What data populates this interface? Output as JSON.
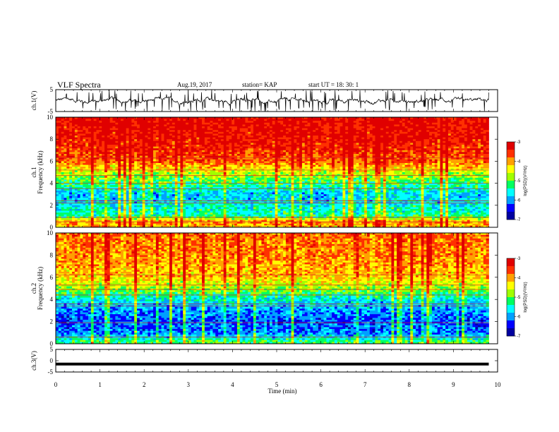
{
  "header": {
    "title": "VLF Spectra",
    "date": "Aug.19, 2017",
    "station": "station= KAP",
    "start": "start  UT  =   18: 30: 1"
  },
  "chart_data": [
    {
      "type": "line",
      "panel": "ch1-waveform",
      "ylabel": "ch.1(V)",
      "ylim": [
        -5,
        5
      ],
      "yticks": [
        5,
        -5
      ],
      "xlim": [
        0,
        10
      ],
      "note_values": "noisy waveform centred near 0 V, full-scale spikes",
      "envelope": {
        "center": 0.0,
        "amplitude": 5
      }
    },
    {
      "type": "heatmap",
      "panel": "ch1-spectrogram",
      "ylabel": "ch.1\nFrequency (kHz)",
      "ylim": [
        0,
        10
      ],
      "yticks": [
        0,
        2,
        4,
        6,
        8,
        10
      ],
      "xlim": [
        0,
        9.8
      ],
      "color_scale": {
        "label": "log(PSD)(V²/Hz)",
        "range": [
          -7,
          -3
        ],
        "ticks": [
          -3,
          -4,
          -5,
          -6,
          -7
        ]
      },
      "profile_khz": [
        {
          "f": 0.0,
          "v": -4.2
        },
        {
          "f": 0.5,
          "v": -3.9
        },
        {
          "f": 1.0,
          "v": -5.3
        },
        {
          "f": 2.0,
          "v": -5.6
        },
        {
          "f": 3.0,
          "v": -5.8
        },
        {
          "f": 4.0,
          "v": -5.2
        },
        {
          "f": 5.0,
          "v": -4.6
        },
        {
          "f": 6.0,
          "v": -3.7
        },
        {
          "f": 8.0,
          "v": -3.3
        },
        {
          "f": 10.0,
          "v": -3.2
        }
      ],
      "lines_khz": [
        0.5,
        0.9,
        2.2,
        2.4,
        3.5,
        4.0,
        4.7,
        5.2,
        6.3
      ]
    },
    {
      "type": "heatmap",
      "panel": "ch2-spectrogram",
      "ylabel": "ch.2\nFrequency (kHz)",
      "ylim": [
        0,
        10
      ],
      "yticks": [
        0,
        2,
        4,
        6,
        8,
        10
      ],
      "xlim": [
        0,
        9.8
      ],
      "color_scale": {
        "label": "log(PSD)(V²/Hz)",
        "range": [
          -7,
          -3
        ],
        "ticks": [
          -3,
          -4,
          -5,
          -6,
          -7
        ]
      },
      "profile_khz": [
        {
          "f": 0.0,
          "v": -5.0
        },
        {
          "f": 1.0,
          "v": -6.1
        },
        {
          "f": 2.0,
          "v": -6.2
        },
        {
          "f": 3.0,
          "v": -6.0
        },
        {
          "f": 4.0,
          "v": -5.6
        },
        {
          "f": 5.0,
          "v": -4.8
        },
        {
          "f": 6.0,
          "v": -4.2
        },
        {
          "f": 8.0,
          "v": -3.9
        },
        {
          "f": 10.0,
          "v": -3.8
        }
      ],
      "lines_khz": [
        0.6,
        1.9,
        3.4,
        3.6,
        4.4,
        4.9,
        5.3,
        6.2
      ]
    },
    {
      "type": "line",
      "panel": "ch3-waveform",
      "ylabel": "ch.3(V)",
      "ylim": [
        -5,
        5
      ],
      "yticks": [
        5,
        0,
        -5
      ],
      "xlim": [
        0,
        10
      ],
      "x": [
        0,
        9.8
      ],
      "y": [
        -1.5,
        -1.5
      ]
    }
  ],
  "x_axis": {
    "label": "Time  (min)",
    "ticks": [
      "0",
      "1",
      "2",
      "3",
      "4",
      "5",
      "6",
      "7",
      "8",
      "9",
      "10"
    ]
  },
  "colors": {
    "spectrum": [
      "#0000a0",
      "#0000ff",
      "#00a0ff",
      "#00ffff",
      "#00ff60",
      "#a0ff00",
      "#ffff00",
      "#ffa000",
      "#ff3000",
      "#e00000"
    ]
  }
}
